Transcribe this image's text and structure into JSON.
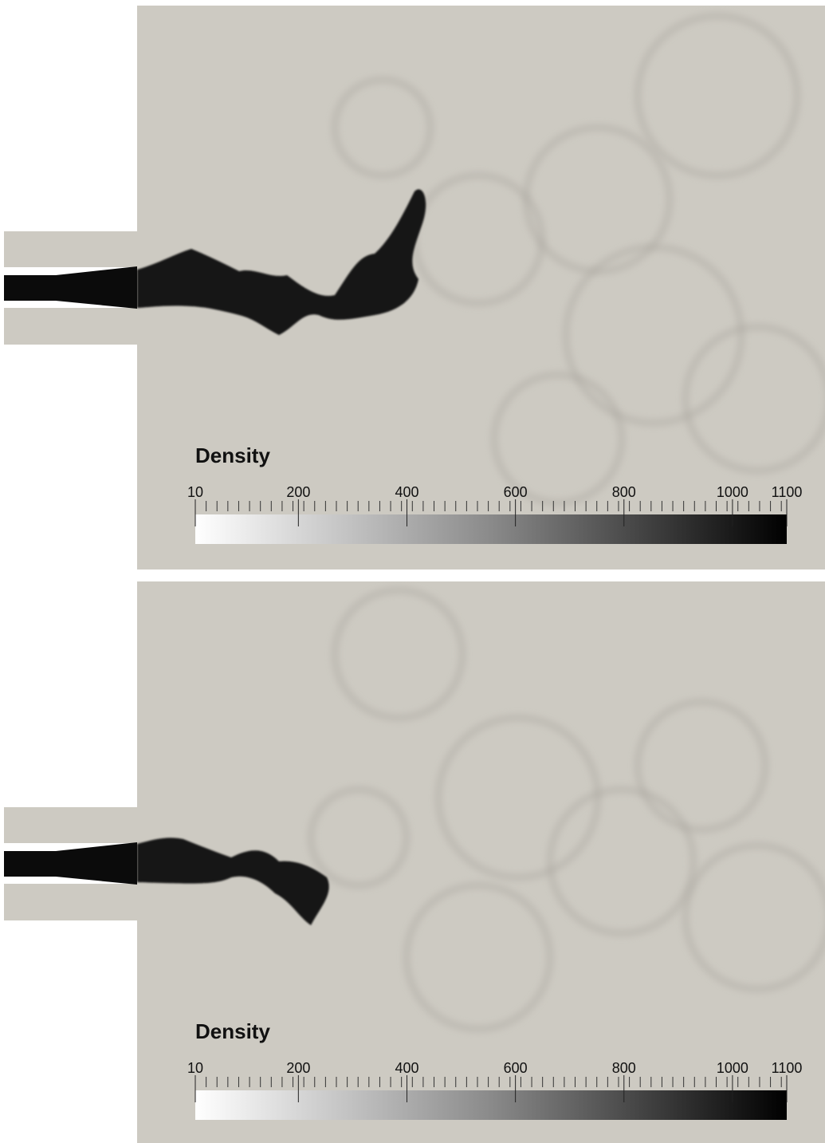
{
  "panels": [
    {
      "colorbar": {
        "title": "Density",
        "range": [
          10,
          1100
        ],
        "ticks": [
          10,
          200,
          400,
          600,
          800,
          1000,
          1100
        ]
      }
    },
    {
      "colorbar": {
        "title": "Density",
        "range": [
          10,
          1100
        ],
        "ticks": [
          10,
          200,
          400,
          600,
          800,
          1000,
          1100
        ]
      }
    }
  ]
}
